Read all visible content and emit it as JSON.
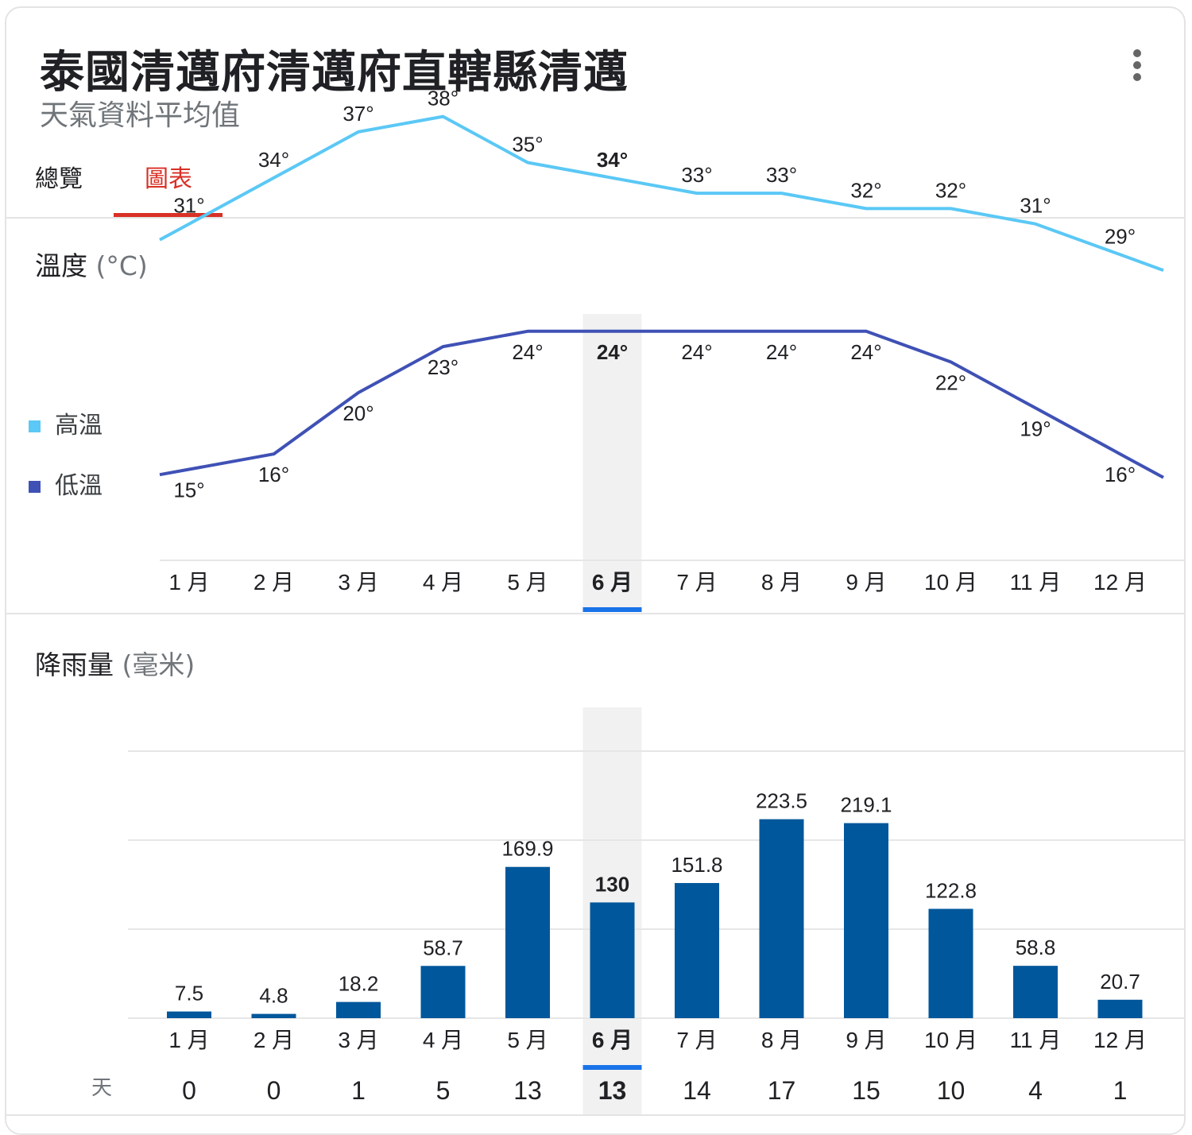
{
  "header": {
    "title": "泰國清邁府清邁府直轄縣清邁",
    "subtitle": "天氣資料平均值",
    "more_icon": "more-vert-icon"
  },
  "tabs": [
    {
      "label": "總覽",
      "active": false
    },
    {
      "label": "圖表",
      "active": true
    }
  ],
  "colors": {
    "accent": "#d93025",
    "high_line": "#5bc8f5",
    "low_line": "#3f51b5",
    "bar": "#01579b",
    "selected_indicator": "#1a73e8",
    "highlight_band": "#f1f1f1"
  },
  "selected_month_index": 5,
  "temperature": {
    "title": "溫度",
    "unit": "(°C)",
    "legend": [
      "高溫",
      "低溫"
    ]
  },
  "rainfall": {
    "title": "降雨量",
    "unit": "(毫米)",
    "days_label": "天"
  },
  "chart_data": [
    {
      "type": "line",
      "categories": [
        "1 月",
        "2 月",
        "3 月",
        "4 月",
        "5 月",
        "6 月",
        "7 月",
        "8 月",
        "9 月",
        "10 月",
        "11 月",
        "12 月"
      ],
      "series": [
        {
          "name": "高溫",
          "values": [
            31,
            34,
            37,
            38,
            35,
            34,
            33,
            33,
            32,
            32,
            31,
            29
          ]
        },
        {
          "name": "低溫",
          "values": [
            15,
            16,
            20,
            23,
            24,
            24,
            24,
            24,
            24,
            22,
            19,
            16
          ]
        }
      ],
      "value_suffix": "°",
      "legend": "left"
    },
    {
      "type": "bar",
      "categories": [
        "1 月",
        "2 月",
        "3 月",
        "4 月",
        "5 月",
        "6 月",
        "7 月",
        "8 月",
        "9 月",
        "10 月",
        "11 月",
        "12 月"
      ],
      "values": [
        7.5,
        4.8,
        18.2,
        58.7,
        169.9,
        130,
        151.8,
        223.5,
        219.1,
        122.8,
        58.8,
        20.7
      ],
      "value_labels": [
        "7.5",
        "4.8",
        "18.2",
        "58.7",
        "169.9",
        "130",
        "151.8",
        "223.5",
        "219.1",
        "122.8",
        "58.8",
        "20.7"
      ],
      "ylim": [
        0,
        300
      ],
      "grid": true,
      "rainy_days": [
        0,
        0,
        1,
        5,
        13,
        13,
        14,
        17,
        15,
        10,
        4,
        1
      ]
    }
  ]
}
